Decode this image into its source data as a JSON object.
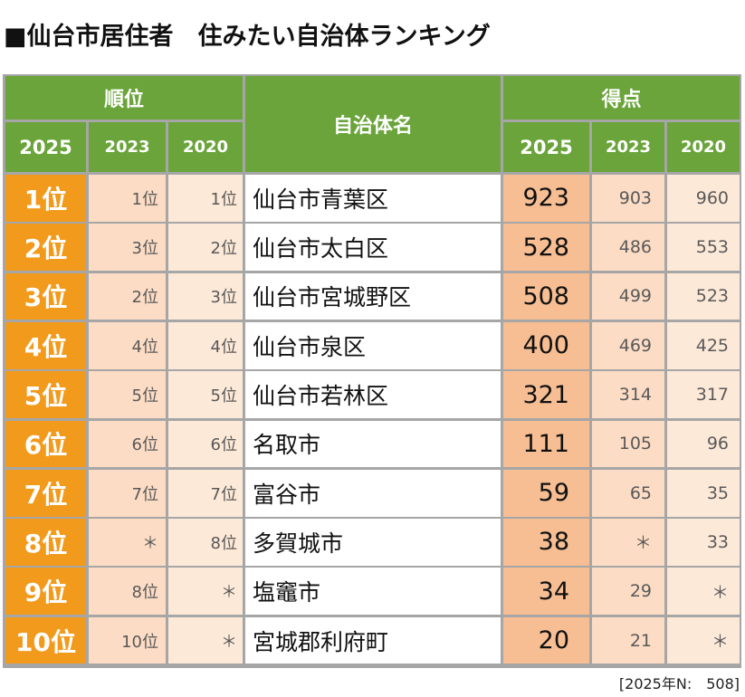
{
  "title": "■仙台市居住者　住みたい自治体ランキング",
  "header": {
    "rank_group": "順位",
    "name": "自治体名",
    "score_group": "得点",
    "rank_2025": "2025",
    "rank_2023": "2023",
    "rank_2020": "2020",
    "score_2025": "2025",
    "score_2023": "2023",
    "score_2020": "2020"
  },
  "rows": [
    {
      "rank2025": "1位",
      "rank2023": "1位",
      "rank2020": "1位",
      "name": "仙台市青葉区",
      "score2025": "923",
      "score2023": "903",
      "score2020": "960"
    },
    {
      "rank2025": "2位",
      "rank2023": "3位",
      "rank2020": "2位",
      "name": "仙台市太白区",
      "score2025": "528",
      "score2023": "486",
      "score2020": "553"
    },
    {
      "rank2025": "3位",
      "rank2023": "2位",
      "rank2020": "3位",
      "name": "仙台市宮城野区",
      "score2025": "508",
      "score2023": "499",
      "score2020": "523"
    },
    {
      "rank2025": "4位",
      "rank2023": "4位",
      "rank2020": "4位",
      "name": "仙台市泉区",
      "score2025": "400",
      "score2023": "469",
      "score2020": "425"
    },
    {
      "rank2025": "5位",
      "rank2023": "5位",
      "rank2020": "5位",
      "name": "仙台市若林区",
      "score2025": "321",
      "score2023": "314",
      "score2020": "317"
    },
    {
      "rank2025": "6位",
      "rank2023": "6位",
      "rank2020": "6位",
      "name": "名取市",
      "score2025": "111",
      "score2023": "105",
      "score2020": "96"
    },
    {
      "rank2025": "7位",
      "rank2023": "7位",
      "rank2020": "7位",
      "name": "富谷市",
      "score2025": "59",
      "score2023": "65",
      "score2020": "35"
    },
    {
      "rank2025": "8位",
      "rank2023": "＊",
      "rank2020": "8位",
      "name": "多賀城市",
      "score2025": "38",
      "score2023": "＊",
      "score2020": "33"
    },
    {
      "rank2025": "9位",
      "rank2023": "8位",
      "rank2020": "＊",
      "name": "塩竈市",
      "score2025": "34",
      "score2023": "29",
      "score2020": "＊"
    },
    {
      "rank2025": "10位",
      "rank2023": "10位",
      "rank2020": "＊",
      "name": "宮城郡利府町",
      "score2025": "20",
      "score2023": "21",
      "score2020": "＊"
    }
  ],
  "footnote": "[2025年N:　508]"
}
